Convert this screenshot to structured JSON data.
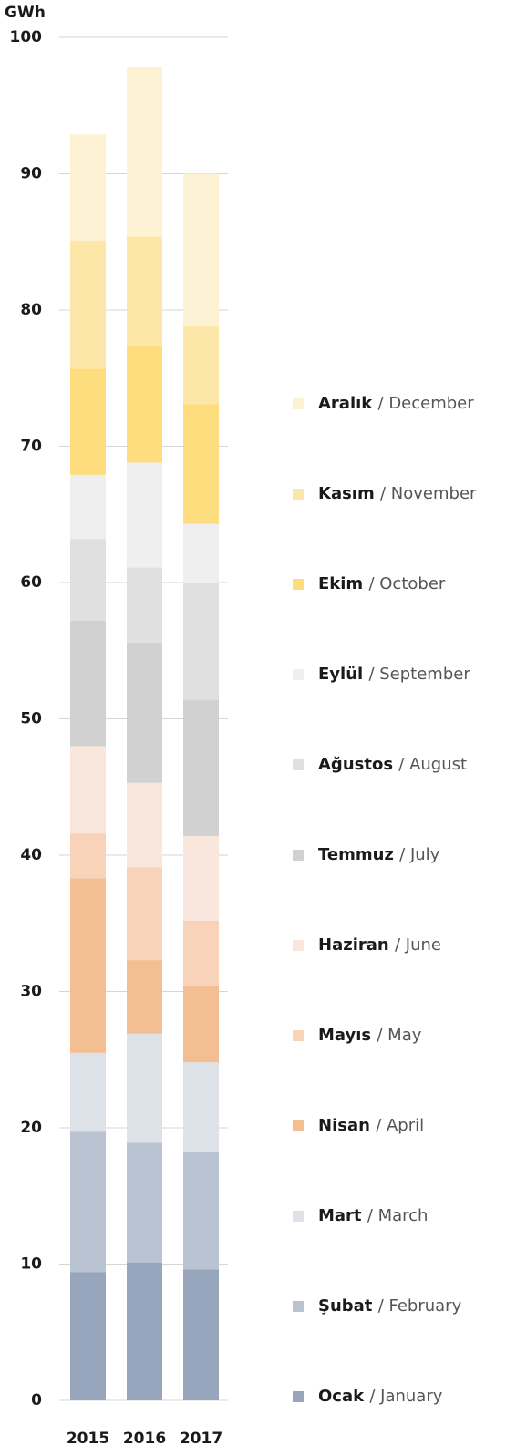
{
  "chart_data": {
    "type": "stacked_bar",
    "y_label": "GWh",
    "categories": [
      "2015",
      "2016",
      "2017"
    ],
    "ylim": [
      0,
      100
    ],
    "yticks": [
      0,
      10,
      20,
      30,
      40,
      50,
      60,
      70,
      80,
      90,
      100
    ],
    "grid": true,
    "series": [
      {
        "name": "Ocak / January",
        "color": "#97a6bd",
        "values": [
          9.4,
          10.1,
          9.6
        ]
      },
      {
        "name": "Şubat / February",
        "color": "#b9c3d2",
        "values": [
          10.3,
          8.8,
          8.6
        ]
      },
      {
        "name": "Mart / March",
        "color": "#dde2e8",
        "values": [
          5.8,
          8.0,
          6.6
        ]
      },
      {
        "name": "Nisan / April",
        "color": "#f3bf92",
        "values": [
          12.8,
          5.4,
          5.6
        ]
      },
      {
        "name": "Mayıs / May",
        "color": "#f8d2b9",
        "values": [
          3.3,
          6.8,
          4.8
        ]
      },
      {
        "name": "Haziran / June",
        "color": "#f9e6dd",
        "values": [
          6.4,
          6.2,
          6.2
        ]
      },
      {
        "name": "Temmuz / July",
        "color": "#d1d1d1",
        "values": [
          9.2,
          10.3,
          10.0
        ]
      },
      {
        "name": "Ağustos / August",
        "color": "#e0e0e0",
        "values": [
          6.0,
          5.5,
          8.6
        ]
      },
      {
        "name": "Eylül / September",
        "color": "#efefef",
        "values": [
          4.7,
          7.7,
          4.3
        ]
      },
      {
        "name": "Ekim / October",
        "color": "#fddd7d",
        "values": [
          7.8,
          8.6,
          8.8
        ]
      },
      {
        "name": "Kasım / November",
        "color": "#fde7a8",
        "values": [
          9.4,
          8.0,
          5.7
        ]
      },
      {
        "name": "Aralık / December",
        "color": "#fef2d5",
        "values": [
          7.8,
          12.4,
          11.2
        ]
      }
    ]
  }
}
